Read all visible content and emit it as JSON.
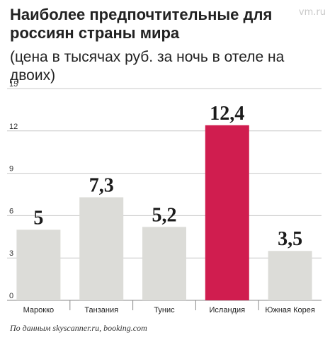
{
  "header": {
    "title": "Наиболее предпочтительные для россиян страны мира",
    "subtitle": "(цена в тысячах руб. за ночь в отеле на двоих)"
  },
  "watermark": "vm.ru",
  "source": "По данным skyscanner.ru, booking.com",
  "colors": {
    "bar": "#dcdcd8",
    "highlight": "#d01d4f",
    "grid": "#c8c8c8",
    "text": "#1b1b1b"
  },
  "chart_data": {
    "type": "bar",
    "title": "Наиболее предпочтительные для россиян страны мира",
    "subtitle": "(цена в тысячах руб. за ночь в отеле на двоих)",
    "categories": [
      "Марокко",
      "Танзания",
      "Тунис",
      "Исландия",
      "Южная Корея"
    ],
    "values": [
      5,
      7.3,
      5.2,
      12.4,
      3.5
    ],
    "value_labels": [
      "5",
      "7,3",
      "5,2",
      "12,4",
      "3,5"
    ],
    "highlight_index": 3,
    "ylim": [
      0,
      15
    ],
    "yticks": [
      0,
      3,
      6,
      9,
      12,
      15
    ],
    "ytick_labels": [
      "0",
      "3",
      "6",
      "9",
      "12",
      "15"
    ],
    "grid": true
  }
}
